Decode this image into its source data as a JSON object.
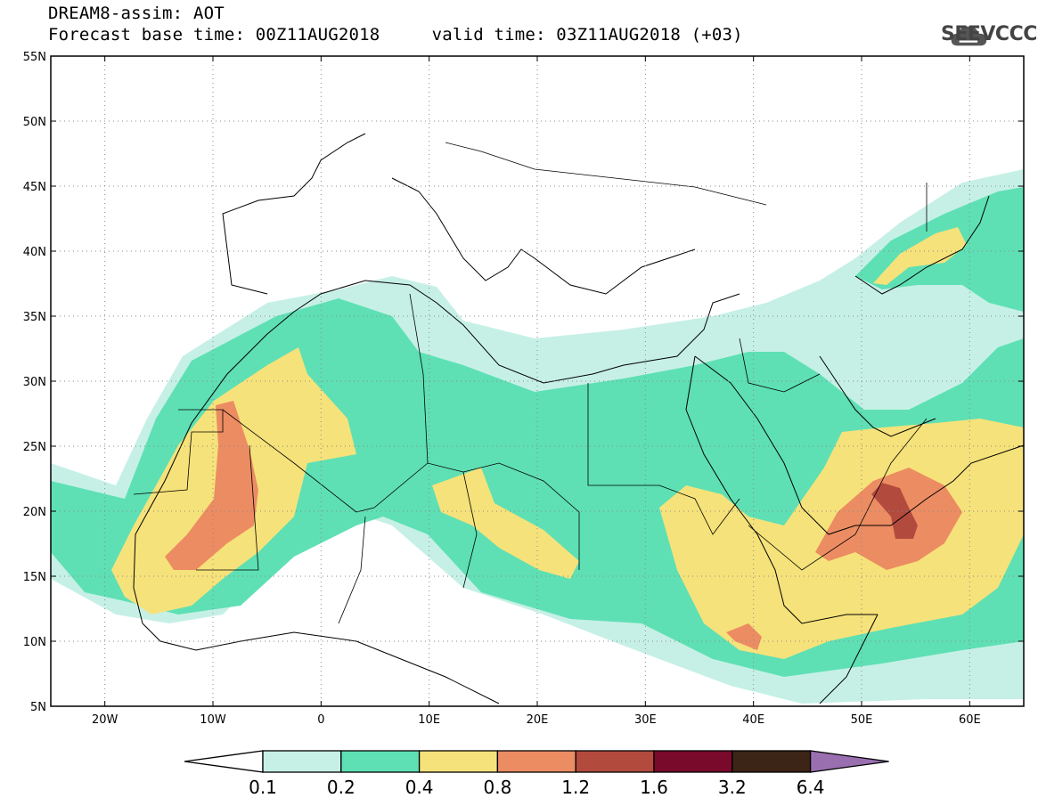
{
  "header": {
    "title": "DREAM8-assim: AOT",
    "subtitle": "Forecast base time: 00Z11AUG2018     valid time: 03Z11AUG2018 (+03)",
    "logo_text": "SEEVCCC"
  },
  "map": {
    "lon_range": [
      -25,
      65
    ],
    "lat_range": [
      5,
      55
    ],
    "lon_ticks": [
      {
        "value": -20,
        "label": "20W"
      },
      {
        "value": -10,
        "label": "10W"
      },
      {
        "value": 0,
        "label": "0"
      },
      {
        "value": 10,
        "label": "10E"
      },
      {
        "value": 20,
        "label": "20E"
      },
      {
        "value": 30,
        "label": "30E"
      },
      {
        "value": 40,
        "label": "40E"
      },
      {
        "value": 50,
        "label": "50E"
      },
      {
        "value": 60,
        "label": "60E"
      }
    ],
    "lat_ticks": [
      {
        "value": 55,
        "label": "55N"
      },
      {
        "value": 50,
        "label": "50N"
      },
      {
        "value": 45,
        "label": "45N"
      },
      {
        "value": 40,
        "label": "40N"
      },
      {
        "value": 35,
        "label": "35N"
      },
      {
        "value": 30,
        "label": "30N"
      },
      {
        "value": 25,
        "label": "25N"
      },
      {
        "value": 20,
        "label": "20N"
      },
      {
        "value": 15,
        "label": "15N"
      },
      {
        "value": 10,
        "label": "10N"
      },
      {
        "value": 5,
        "label": "5N"
      }
    ],
    "grid": "dotted"
  },
  "colorbar": {
    "levels": [
      "0.1",
      "0.2",
      "0.4",
      "0.8",
      "1.2",
      "1.6",
      "3.2",
      "6.4"
    ],
    "colors": [
      "#ffffff",
      "#c6f0e6",
      "#5ee0b4",
      "#f6e27a",
      "#ec8c62",
      "#b34a3e",
      "#7a0a2c",
      "#3c2416",
      "#9a6fb0"
    ]
  },
  "fields": {
    "aot_0_1": "#c6f0e6",
    "aot_0_2": "#5ee0b4",
    "aot_0_4": "#f6e27a",
    "aot_0_8": "#ec8c62",
    "aot_1_2": "#b34a3e"
  }
}
